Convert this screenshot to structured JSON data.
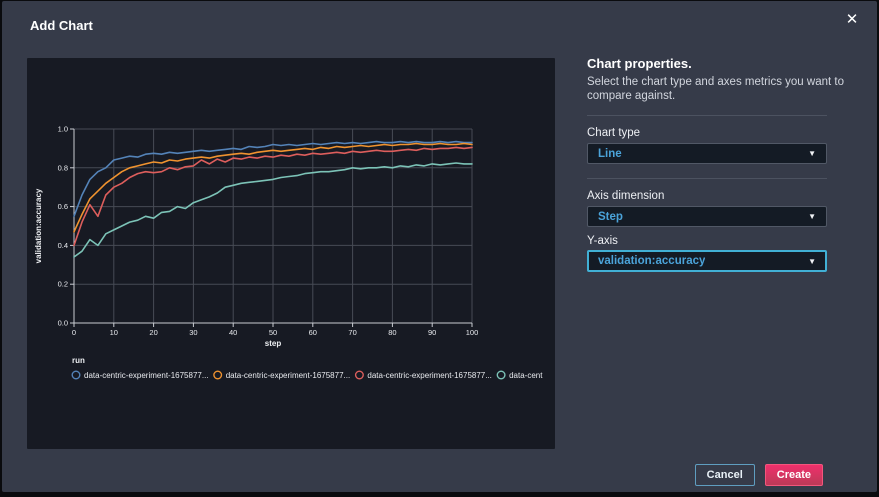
{
  "window": {
    "title": "Add Chart",
    "close_icon": "✕"
  },
  "properties_panel": {
    "heading": "Chart properties.",
    "description": "Select the chart type and axes metrics you want to compare against.",
    "fields": [
      {
        "label": "Chart type",
        "value": "Line"
      },
      {
        "label": "Axis dimension",
        "value": "Step"
      },
      {
        "label": "Y-axis",
        "value": "validation:accuracy"
      }
    ]
  },
  "footer": {
    "cancel_label": "Cancel",
    "create_label": "Create"
  },
  "colors": {
    "modal_bg": "#363b49",
    "chart_panel_bg": "#171a23",
    "dropdown_bg": "#141b25",
    "dropdown_text": "#4ba3d9",
    "focus_border": "#41b0d5",
    "create_button": "#e92d63",
    "grid": "#474b55",
    "axis": "#c9ccd2"
  },
  "chart_data": {
    "type": "line",
    "title": "",
    "xlabel": "step",
    "ylabel": "validation:accuracy",
    "xlim": [
      0,
      100
    ],
    "ylim": [
      0,
      1
    ],
    "x_ticks": [
      0,
      10,
      20,
      30,
      40,
      50,
      60,
      70,
      80,
      90,
      100
    ],
    "y_ticks": [
      0.0,
      0.2,
      0.4,
      0.6,
      0.8,
      1.0
    ],
    "grid": true,
    "legend_title": "run",
    "legend_position": "bottom",
    "x": [
      0,
      2,
      4,
      6,
      8,
      10,
      12,
      14,
      16,
      18,
      20,
      22,
      24,
      26,
      28,
      30,
      32,
      34,
      36,
      38,
      40,
      42,
      44,
      46,
      48,
      50,
      52,
      54,
      56,
      58,
      60,
      62,
      64,
      66,
      68,
      70,
      72,
      74,
      76,
      78,
      80,
      82,
      84,
      86,
      88,
      90,
      92,
      94,
      96,
      98,
      100
    ],
    "series": [
      {
        "name": "data-centric-experiment-1675877...",
        "color": "#5483b8",
        "values": [
          0.55,
          0.66,
          0.74,
          0.78,
          0.8,
          0.84,
          0.85,
          0.86,
          0.855,
          0.87,
          0.875,
          0.87,
          0.88,
          0.875,
          0.88,
          0.885,
          0.89,
          0.885,
          0.89,
          0.895,
          0.9,
          0.895,
          0.91,
          0.905,
          0.91,
          0.92,
          0.915,
          0.92,
          0.915,
          0.92,
          0.925,
          0.92,
          0.925,
          0.93,
          0.925,
          0.93,
          0.925,
          0.93,
          0.935,
          0.93,
          0.93,
          0.935,
          0.93,
          0.935,
          0.93,
          0.93,
          0.935,
          0.93,
          0.935,
          0.93,
          0.93
        ]
      },
      {
        "name": "data-centric-experiment-1675877...",
        "color": "#f0932f",
        "values": [
          0.47,
          0.56,
          0.64,
          0.68,
          0.72,
          0.75,
          0.78,
          0.8,
          0.81,
          0.82,
          0.83,
          0.825,
          0.84,
          0.835,
          0.845,
          0.85,
          0.855,
          0.85,
          0.86,
          0.865,
          0.87,
          0.875,
          0.87,
          0.88,
          0.885,
          0.89,
          0.885,
          0.89,
          0.895,
          0.9,
          0.895,
          0.905,
          0.9,
          0.91,
          0.905,
          0.91,
          0.915,
          0.91,
          0.915,
          0.92,
          0.915,
          0.92,
          0.92,
          0.925,
          0.92,
          0.92,
          0.925,
          0.92,
          0.92,
          0.925,
          0.92
        ]
      },
      {
        "name": "data-centric-experiment-1675877...",
        "color": "#dd5e5c",
        "values": [
          0.4,
          0.52,
          0.61,
          0.55,
          0.66,
          0.7,
          0.72,
          0.75,
          0.77,
          0.78,
          0.775,
          0.78,
          0.8,
          0.79,
          0.805,
          0.81,
          0.84,
          0.82,
          0.845,
          0.83,
          0.85,
          0.845,
          0.855,
          0.85,
          0.86,
          0.855,
          0.865,
          0.86,
          0.87,
          0.865,
          0.875,
          0.87,
          0.875,
          0.88,
          0.875,
          0.885,
          0.88,
          0.885,
          0.89,
          0.885,
          0.885,
          0.89,
          0.895,
          0.89,
          0.9,
          0.895,
          0.9,
          0.9,
          0.905,
          0.9,
          0.905
        ]
      },
      {
        "name": "data-cent",
        "color": "#7cc3b7",
        "values": [
          0.34,
          0.37,
          0.43,
          0.4,
          0.46,
          0.48,
          0.5,
          0.52,
          0.53,
          0.55,
          0.54,
          0.57,
          0.575,
          0.6,
          0.59,
          0.62,
          0.635,
          0.65,
          0.67,
          0.7,
          0.71,
          0.72,
          0.725,
          0.73,
          0.735,
          0.74,
          0.75,
          0.755,
          0.76,
          0.77,
          0.775,
          0.78,
          0.78,
          0.785,
          0.79,
          0.8,
          0.795,
          0.8,
          0.8,
          0.805,
          0.8,
          0.81,
          0.805,
          0.815,
          0.81,
          0.82,
          0.815,
          0.82,
          0.825,
          0.82,
          0.82
        ]
      }
    ]
  }
}
